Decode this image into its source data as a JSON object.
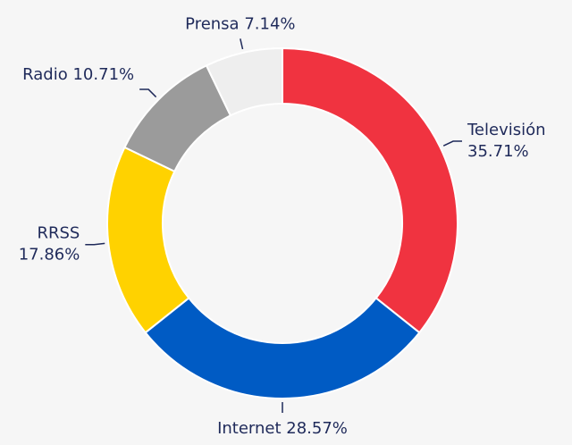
{
  "chart_data": {
    "type": "donut",
    "categories": [
      "Televisión",
      "Internet",
      "RRSS",
      "Radio",
      "Prensa"
    ],
    "values": [
      35.71,
      28.57,
      17.86,
      10.71,
      7.14
    ],
    "value_labels": [
      "35.71%",
      "28.57%",
      "17.86%",
      "10.71%",
      "7.14%"
    ],
    "colors": [
      "#f03340",
      "#005bc4",
      "#ffd200",
      "#9b9b9b",
      "#eeeeee"
    ]
  }
}
